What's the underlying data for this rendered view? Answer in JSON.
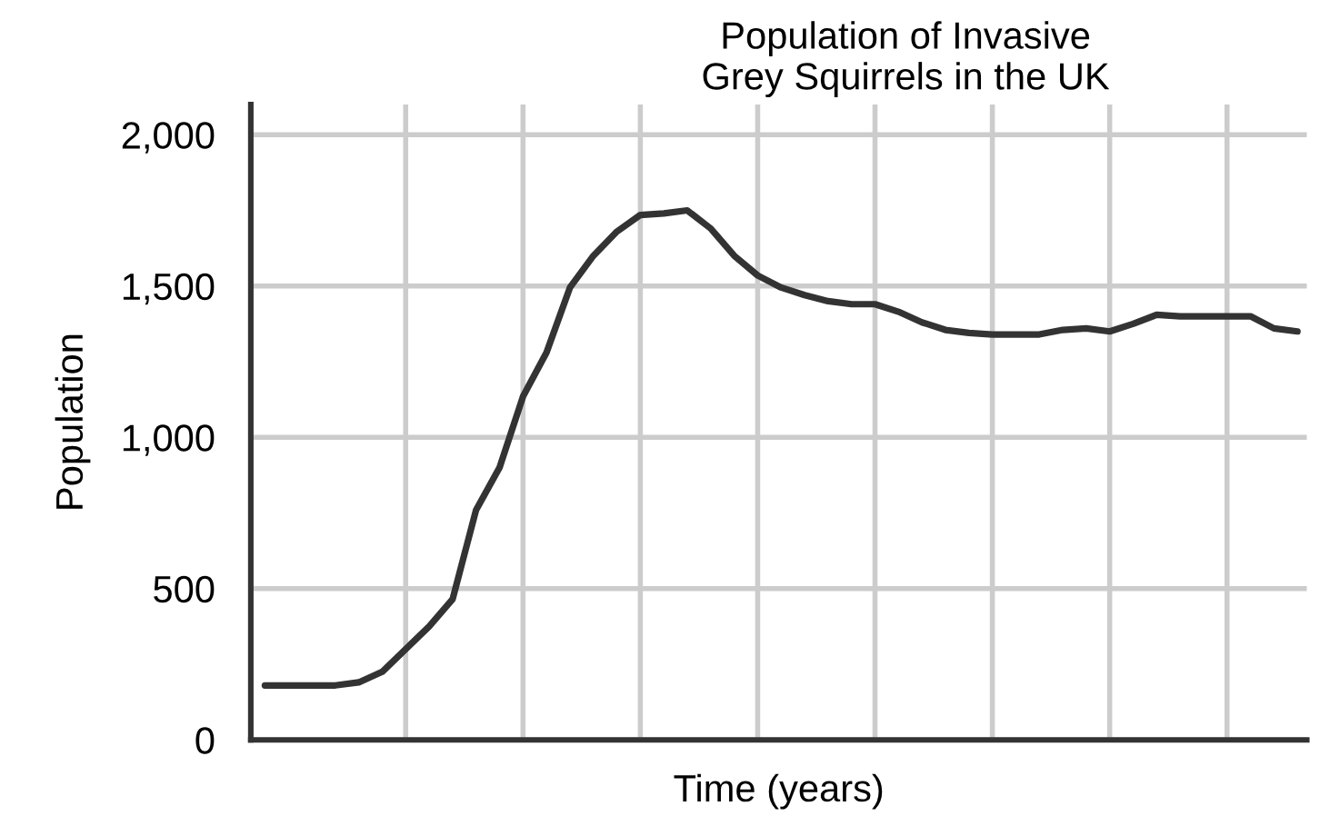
{
  "chart_data": {
    "type": "line",
    "title": "Population of Invasive\nGrey Squirrels in the UK",
    "xlabel": "Time (years)",
    "ylabel": "Population",
    "categories": [
      null,
      null,
      null,
      null,
      null,
      null,
      null,
      null,
      null,
      null,
      null,
      null,
      null,
      null,
      null,
      null,
      null,
      null,
      null,
      null,
      null,
      null,
      null,
      null,
      null,
      null,
      null,
      null,
      null,
      null,
      null,
      null,
      null,
      null,
      null,
      null,
      null,
      null,
      null,
      null,
      null,
      null,
      null,
      null,
      null
    ],
    "series": [
      {
        "color": "#333333",
        "values": [
          180,
          180,
          180,
          180,
          190,
          225,
          300,
          375,
          465,
          760,
          900,
          1135,
          1280,
          1495,
          1600,
          1680,
          1735,
          1740,
          1750,
          1690,
          1600,
          1535,
          1495,
          1470,
          1450,
          1440,
          1440,
          1415,
          1380,
          1355,
          1345,
          1340,
          1340,
          1340,
          1355,
          1360,
          1350,
          1375,
          1405,
          1400,
          1400,
          1400,
          1400,
          1360,
          1350
        ]
      }
    ],
    "ylim": [
      0,
      2100
    ],
    "yticks": [
      {
        "value": 0,
        "label": "0"
      },
      {
        "value": 500,
        "label": "500"
      },
      {
        "value": 1000,
        "label": "1,000"
      },
      {
        "value": 1500,
        "label": "1,500"
      },
      {
        "value": 2000,
        "label": "2,000"
      }
    ],
    "grid": true,
    "legend": false,
    "marker": "none",
    "line_style": "solid"
  }
}
